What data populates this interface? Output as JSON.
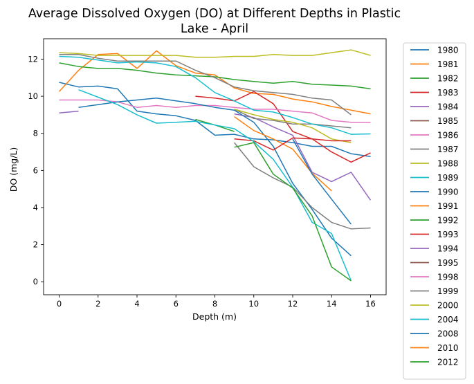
{
  "chart_data": {
    "type": "line",
    "title_line1": "Average Dissolved Oxygen (DO) at Different Depths in Plastic",
    "title_line2": "Lake - April",
    "xlabel": "Depth (m)",
    "ylabel": "DO (mg/L)",
    "xlim": [
      -0.8,
      16.8
    ],
    "ylim": [
      -0.7,
      13.1
    ],
    "xticks": [
      0,
      2,
      4,
      6,
      8,
      10,
      12,
      14,
      16
    ],
    "yticks": [
      0,
      2,
      4,
      6,
      8,
      10,
      12
    ],
    "legend_position": "outside-right",
    "grid": false,
    "series": [
      {
        "name": "1980",
        "color": "#1f77b4",
        "x": [
          0,
          1,
          2,
          3,
          4,
          5,
          6,
          7,
          8,
          9,
          10,
          11,
          12,
          13,
          14,
          15,
          16
        ],
        "y": [
          10.75,
          10.5,
          10.55,
          10.4,
          9.2,
          9.05,
          8.95,
          8.7,
          7.9,
          7.95,
          7.7,
          7.65,
          7.5,
          7.3,
          7.3,
          6.9,
          6.75
        ]
      },
      {
        "name": "1981",
        "color": "#ff7f0e",
        "x": [
          0,
          1,
          2,
          3,
          4,
          5,
          6,
          7,
          8,
          9,
          10,
          11,
          12,
          13,
          14,
          15,
          16
        ],
        "y": [
          10.25,
          11.4,
          12.25,
          12.3,
          11.5,
          12.45,
          11.65,
          11.25,
          11.15,
          10.45,
          10.15,
          10.1,
          9.85,
          9.7,
          9.45,
          9.25,
          9.05
        ]
      },
      {
        "name": "1982",
        "color": "#2ca02c",
        "x": [
          0,
          1,
          2,
          3,
          4,
          5,
          6,
          7,
          8,
          9,
          10,
          11,
          12,
          13,
          14,
          15,
          16
        ],
        "y": [
          11.8,
          11.6,
          11.5,
          11.5,
          11.4,
          11.25,
          11.15,
          11.1,
          11.05,
          10.9,
          10.8,
          10.7,
          10.8,
          10.65,
          10.6,
          10.55,
          10.4
        ]
      },
      {
        "name": "1983",
        "color": "#d62728",
        "x": [
          7,
          8,
          9,
          10,
          11,
          12,
          13,
          14,
          15,
          16
        ],
        "y": [
          10.0,
          9.9,
          9.75,
          10.25,
          9.6,
          8.1,
          7.7,
          7.0,
          6.45,
          6.95
        ]
      },
      {
        "name": "1984",
        "color": "#9467bd",
        "x": [
          0,
          1,
          null,
          9,
          10,
          11,
          12,
          13,
          14,
          15,
          16
        ],
        "y": [
          9.1,
          9.2,
          null,
          9.05,
          8.85,
          8.35,
          7.9,
          5.9,
          5.4,
          5.9,
          4.4
        ]
      },
      {
        "name": "1985",
        "color": "#8c564b",
        "x": [],
        "y": []
      },
      {
        "name": "1986",
        "color": "#e377c2",
        "x": [
          0,
          1,
          2,
          3,
          4,
          5,
          6,
          7,
          8,
          9,
          10,
          11,
          12,
          13,
          14,
          15,
          16
        ],
        "y": [
          9.8,
          9.8,
          9.8,
          9.7,
          9.4,
          9.5,
          9.4,
          9.5,
          9.5,
          9.4,
          9.3,
          9.3,
          9.2,
          9.1,
          8.7,
          8.6,
          8.6
        ]
      },
      {
        "name": "1987",
        "color": "#7f7f7f",
        "x": [
          9,
          10,
          11,
          12,
          13,
          14,
          15
        ],
        "y": [
          9.3,
          8.8,
          8.7,
          8.5,
          8.5,
          8.4,
          8.3
        ]
      },
      {
        "name": "1988",
        "color": "#bcbd22",
        "x": [
          9,
          10,
          11,
          12,
          13,
          14,
          15
        ],
        "y": [
          9.3,
          9.0,
          8.75,
          8.6,
          8.3,
          7.7,
          7.5
        ]
      },
      {
        "name": "1989",
        "color": "#17becf",
        "x": [
          0,
          1,
          2,
          3,
          4,
          5,
          6,
          7,
          8,
          9,
          10,
          11,
          12,
          13,
          14,
          15,
          16
        ],
        "y": [
          12.15,
          12.1,
          11.95,
          11.8,
          11.85,
          11.8,
          11.6,
          11.0,
          10.2,
          9.75,
          9.25,
          9.15,
          8.85,
          8.5,
          8.3,
          7.95,
          7.97
        ]
      },
      {
        "name": "1990",
        "color": "#1f77b4",
        "x": [
          1,
          2,
          3,
          4,
          5,
          6,
          7,
          8,
          9,
          10,
          11,
          12,
          13,
          14,
          15
        ],
        "y": [
          9.4,
          9.55,
          9.7,
          9.8,
          9.9,
          9.75,
          9.6,
          9.4,
          9.25,
          8.6,
          7.3,
          5.3,
          3.9,
          2.35,
          1.4
        ]
      },
      {
        "name": "1991",
        "color": "#ff7f0e",
        "x": [
          9,
          10,
          11,
          12,
          13,
          14
        ],
        "y": [
          8.9,
          8.15,
          7.7,
          7.15,
          5.85,
          4.9
        ]
      },
      {
        "name": "1992",
        "color": "#2ca02c",
        "x": [
          7,
          8,
          9
        ],
        "y": [
          8.75,
          8.45,
          8.1
        ]
      },
      {
        "name": "1993",
        "color": "#d62728",
        "x": [
          9,
          10,
          11,
          12,
          13,
          14,
          15
        ],
        "y": [
          7.7,
          7.6,
          7.1,
          7.75,
          7.7,
          7.6,
          7.6
        ]
      },
      {
        "name": "1994",
        "color": "#9467bd",
        "x": [],
        "y": []
      },
      {
        "name": "1995",
        "color": "#8c564b",
        "x": [],
        "y": []
      },
      {
        "name": "1998",
        "color": "#e377c2",
        "x": [],
        "y": []
      },
      {
        "name": "1999",
        "color": "#7f7f7f",
        "x": [
          0,
          1,
          2,
          3,
          4,
          5,
          6,
          7,
          8,
          9,
          10,
          11,
          12,
          13,
          14,
          15,
          16,
          null,
          9,
          10,
          11,
          12,
          13,
          14,
          15,
          16
        ],
        "y": [
          12.25,
          12.25,
          12.05,
          11.9,
          11.9,
          11.9,
          11.9,
          11.4,
          11.0,
          10.5,
          10.3,
          10.2,
          10.1,
          9.9,
          9.8,
          9.0,
          null,
          null,
          7.5,
          6.2,
          5.6,
          5.1,
          4.0,
          3.2,
          2.85,
          2.9
        ]
      },
      {
        "name": "2000",
        "color": "#bcbd22",
        "x": [
          0,
          1,
          2,
          3,
          4,
          5,
          6,
          7,
          8,
          9,
          10,
          11,
          12,
          13,
          14,
          15,
          16
        ],
        "y": [
          12.35,
          12.3,
          12.2,
          12.2,
          12.2,
          12.2,
          12.2,
          12.1,
          12.1,
          12.15,
          12.15,
          12.25,
          12.2,
          12.2,
          12.35,
          12.5,
          12.2
        ]
      },
      {
        "name": "2004",
        "color": "#17becf",
        "x": [
          1,
          2,
          3,
          4,
          5,
          6,
          7,
          8,
          9,
          10,
          11,
          12,
          13,
          14,
          15
        ],
        "y": [
          10.35,
          9.95,
          9.55,
          9.0,
          8.55,
          8.6,
          8.65,
          8.45,
          8.25,
          7.55,
          6.6,
          5.1,
          3.2,
          2.6,
          0.05
        ]
      },
      {
        "name": "2008",
        "color": "#1f77b4",
        "x": [
          12,
          13,
          14,
          15
        ],
        "y": [
          7.7,
          5.8,
          4.45,
          3.1
        ]
      },
      {
        "name": "2010",
        "color": "#ff7f0e",
        "x": [],
        "y": []
      },
      {
        "name": "2012",
        "color": "#2ca02c",
        "x": [
          9,
          10,
          11,
          12,
          13,
          14,
          15
        ],
        "y": [
          7.25,
          7.5,
          5.8,
          5.05,
          3.55,
          0.8,
          0.05
        ]
      }
    ]
  }
}
